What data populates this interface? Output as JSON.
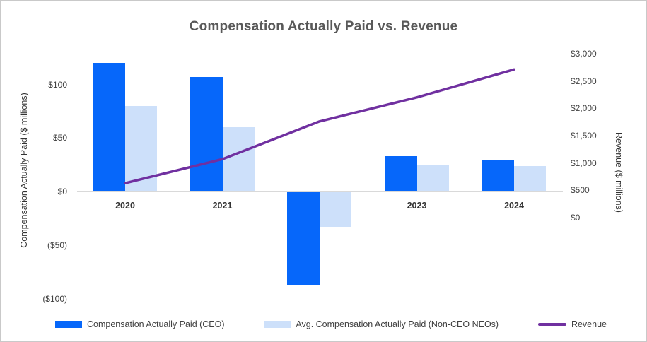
{
  "chart_data": {
    "type": "combo",
    "title": "Compensation Actually Paid vs. Revenue",
    "categories": [
      "2020",
      "2021",
      "2022",
      "2023",
      "2024"
    ],
    "series": [
      {
        "name": "Compensation Actually Paid (CEO)",
        "type": "bar",
        "axis": "left",
        "color": "#0667fa",
        "values": [
          120,
          107,
          -87,
          33,
          29
        ]
      },
      {
        "name": "Avg. Compensation Actually Paid (Non-CEO NEOs)",
        "type": "bar",
        "axis": "left",
        "color": "#cde0fa",
        "values": [
          80,
          60,
          -33,
          25,
          24
        ]
      },
      {
        "name": "Revenue",
        "type": "line",
        "axis": "right",
        "color": "#7030a0",
        "values": [
          630,
          1070,
          1760,
          2200,
          2710
        ]
      }
    ],
    "left_axis": {
      "title": "Compensation Actually Paid ($ millions)",
      "tick_labels": [
        "$100",
        "$50",
        "$0",
        "($50)",
        "($100)"
      ],
      "tick_values": [
        100,
        50,
        0,
        -50,
        -100
      ],
      "range": [
        -100,
        100
      ]
    },
    "right_axis": {
      "title": "Revenue ($ millions)",
      "tick_labels": [
        "$3,000",
        "$2,500",
        "$2,000",
        "$1,500",
        "$1,000",
        "$500",
        "$0"
      ],
      "tick_values": [
        3000,
        2500,
        2000,
        1500,
        1000,
        500,
        0
      ],
      "range": [
        0,
        3000
      ]
    },
    "legend_position": "bottom",
    "gridlines": false,
    "colors": {
      "axis_line": "#d9d9d9",
      "title_text": "#595959",
      "tick_text": "#404040"
    }
  }
}
